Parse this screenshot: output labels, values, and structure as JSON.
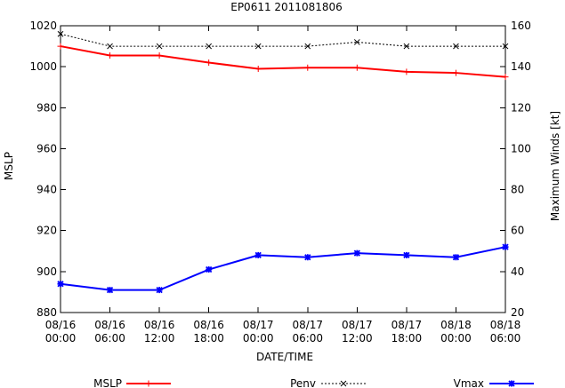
{
  "chart_data": {
    "type": "line",
    "title": "EP0611 2011081806",
    "xlabel": "DATE/TIME",
    "ylabel_left": "MSLP",
    "ylabel_right": "Maximum Winds [kt]",
    "ylim_left": [
      880,
      1020
    ],
    "ylim_right": [
      20,
      160
    ],
    "yticks_left": [
      "880",
      "900",
      "920",
      "940",
      "960",
      "980",
      "1000",
      "1020"
    ],
    "yticks_right": [
      "20",
      "40",
      "60",
      "80",
      "100",
      "120",
      "140",
      "160"
    ],
    "categories": [
      [
        "08/16",
        "00:00"
      ],
      [
        "08/16",
        "06:00"
      ],
      [
        "08/16",
        "12:00"
      ],
      [
        "08/16",
        "18:00"
      ],
      [
        "08/17",
        "00:00"
      ],
      [
        "08/17",
        "06:00"
      ],
      [
        "08/17",
        "12:00"
      ],
      [
        "08/17",
        "18:00"
      ],
      [
        "08/18",
        "00:00"
      ],
      [
        "08/18",
        "06:00"
      ]
    ],
    "grid": false,
    "legend_position": "bottom",
    "series": [
      {
        "name": "MSLP",
        "axis": "left",
        "color": "#ff0000",
        "marker": "plus",
        "values": [
          1010,
          1005.5,
          1005.5,
          1002,
          999,
          999.5,
          999.5,
          997.5,
          997,
          995
        ]
      },
      {
        "name": "Penv",
        "axis": "left",
        "color": "#000000",
        "marker": "cross",
        "dashed": true,
        "values": [
          1016,
          1010,
          1010,
          1010,
          1010,
          1010,
          1012,
          1010,
          1010,
          1010
        ]
      },
      {
        "name": "Vmax",
        "axis": "right",
        "color": "#0000ff",
        "marker": "star",
        "values": [
          34,
          31,
          31,
          41,
          48,
          47,
          49,
          48,
          47,
          52
        ]
      }
    ]
  }
}
